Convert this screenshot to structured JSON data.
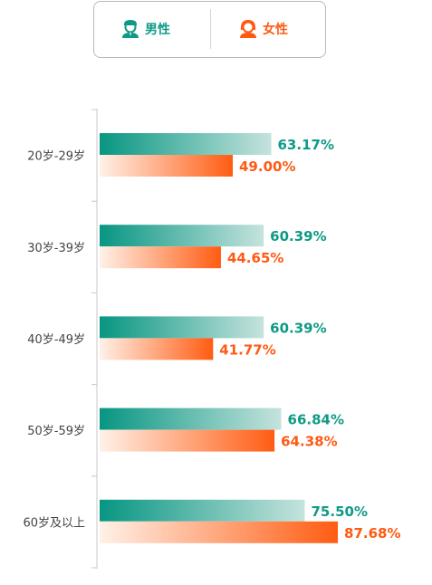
{
  "legend": {
    "male_label": "男性",
    "female_label": "女性"
  },
  "colors": {
    "male": "#0e9a86",
    "female": "#ff5a14",
    "axis": "#c8c8c8",
    "category_text": "#444444"
  },
  "chart_data": {
    "type": "bar",
    "orientation": "horizontal",
    "categories": [
      "20岁-29岁",
      "30岁-39岁",
      "40岁-49岁",
      "50岁-59岁",
      "60岁及以上"
    ],
    "series": [
      {
        "name": "男性",
        "values": [
          63.17,
          60.39,
          60.39,
          66.84,
          75.5
        ],
        "labels": [
          "63.17%",
          "60.39%",
          "60.39%",
          "66.84%",
          "75.50%"
        ]
      },
      {
        "name": "女性",
        "values": [
          49.0,
          44.65,
          41.77,
          64.38,
          87.68
        ],
        "labels": [
          "49.00%",
          "44.65%",
          "41.77%",
          "64.38%",
          "87.68%"
        ]
      }
    ],
    "xlim": [
      0,
      100
    ],
    "unit": "%",
    "legend_position": "top-center",
    "grid": false
  }
}
